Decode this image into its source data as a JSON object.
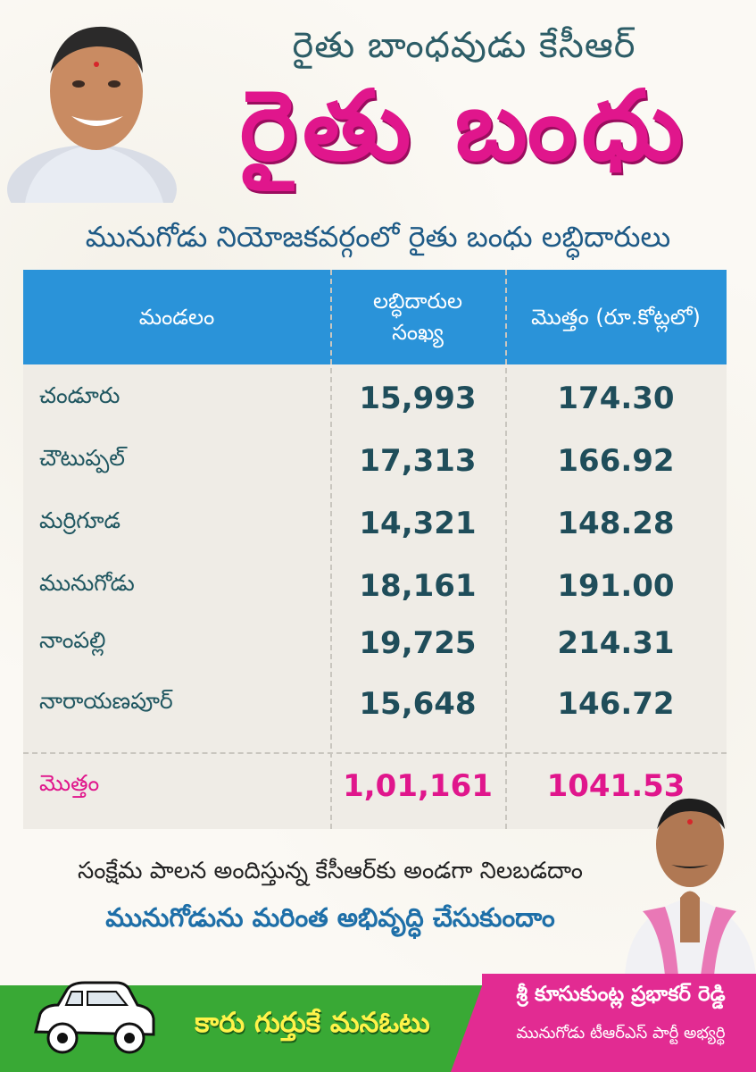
{
  "header": {
    "subtitle": "రైతు బాంధవుడు కేసీఆర్",
    "title": "రైతు బంధు",
    "line": "మునుగోడు నియోజకవర్గంలో రైతు బంధు లబ్ధిదారులు"
  },
  "table": {
    "columns": [
      "మండలం",
      "లబ్ధిదారుల సంఖ్య",
      "మొత్తం (రూ.కోట్లలో)"
    ],
    "rows": [
      {
        "mandal": "చండూరు",
        "beneficiaries": "15,993",
        "amount": "174.30"
      },
      {
        "mandal": "చౌటుప్పల్",
        "beneficiaries": "17,313",
        "amount": "166.92"
      },
      {
        "mandal": "మర్రిగూడ",
        "beneficiaries": "14,321",
        "amount": "148.28"
      },
      {
        "mandal": "మునుగోడు",
        "beneficiaries": "18,161",
        "amount": "191.00"
      },
      {
        "mandal": "నాంపల్లి",
        "beneficiaries": "19,725",
        "amount": "214.31"
      },
      {
        "mandal": "నారాయణపూర్",
        "beneficiaries": "15,648",
        "amount": "146.72"
      }
    ],
    "total": {
      "label": "మొత్తం",
      "beneficiaries": "1,01,161",
      "amount": "1041.53"
    }
  },
  "slogans": {
    "line1": "సంక్షేమ పాలన అందిస్తున్న కేసీఆర్‌కు అండగా నిలబడదాం",
    "line2": "మునుగోడును మరింత అభివృద్ధి చేసుకుందాం"
  },
  "footer": {
    "slogan": "కారు గుర్తుకే మనఓటు",
    "candidate_name": "శ్రీ కూసుకుంట్ల ప్రభాకర్ రెడ్డి",
    "candidate_title": "మునుగోడు టీఆర్ఎస్ పార్టీ అభ్యర్థి"
  },
  "colors": {
    "accent_pink": "#e0168c",
    "header_blue": "#2a93d9",
    "footer_green": "#39a935",
    "footer_pink": "#e22b92"
  }
}
